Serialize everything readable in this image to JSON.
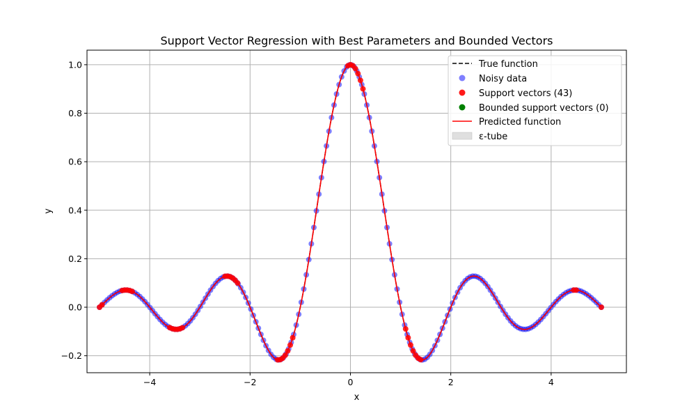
{
  "chart_data": {
    "type": "scatter",
    "title": "Support Vector Regression with Best Parameters and Bounded Vectors",
    "xlabel": "x",
    "ylabel": "y",
    "xlim": [
      -5.25,
      5.5
    ],
    "ylim": [
      -0.27,
      1.06
    ],
    "grid": true,
    "legend_position": "top-right",
    "x_ticks": [
      -4,
      -2,
      0,
      2,
      4
    ],
    "x_tick_labels": [
      "−4",
      "−2",
      "0",
      "2",
      "4"
    ],
    "y_ticks": [
      -0.2,
      0.0,
      0.2,
      0.4,
      0.6,
      0.8,
      1.0
    ],
    "y_tick_labels": [
      "−0.2",
      "0.0",
      "0.2",
      "0.4",
      "0.6",
      "0.8",
      "1.0"
    ],
    "function": "sinc",
    "x_range": [
      -5,
      5
    ],
    "n_points": 200,
    "epsilon": 0.01,
    "support_vector_x": [
      -5.0,
      -4.95,
      -4.55,
      -4.5,
      -4.45,
      -4.4,
      -4.35,
      -3.6,
      -3.55,
      -3.5,
      -3.45,
      -3.4,
      -3.35,
      -2.5,
      -2.45,
      -2.4,
      -2.35,
      -2.3,
      -2.25,
      -1.45,
      -1.4,
      -1.35,
      -1.3,
      -1.25,
      -1.2,
      -1.15,
      -0.05,
      0.0,
      0.05,
      0.1,
      0.15,
      0.2,
      0.25,
      1.1,
      1.15,
      1.2,
      1.25,
      1.3,
      1.35,
      1.4,
      4.45,
      4.5,
      5.0
    ],
    "series": [
      {
        "name": "True function",
        "kind": "line",
        "color": "#000000",
        "style": "dashed"
      },
      {
        "name": "Noisy data",
        "kind": "scatter",
        "color": "#0000ff",
        "alpha": 0.5
      },
      {
        "name": "Support vectors (43)",
        "kind": "scatter",
        "color": "#ff0000",
        "alpha": 0.85
      },
      {
        "name": "Bounded support vectors (0)",
        "kind": "scatter",
        "color": "#008000"
      },
      {
        "name": "Predicted function",
        "kind": "line",
        "color": "#ff0000"
      },
      {
        "name": "ε-tube",
        "kind": "area",
        "color": "#808080",
        "alpha": 0.2
      }
    ]
  }
}
